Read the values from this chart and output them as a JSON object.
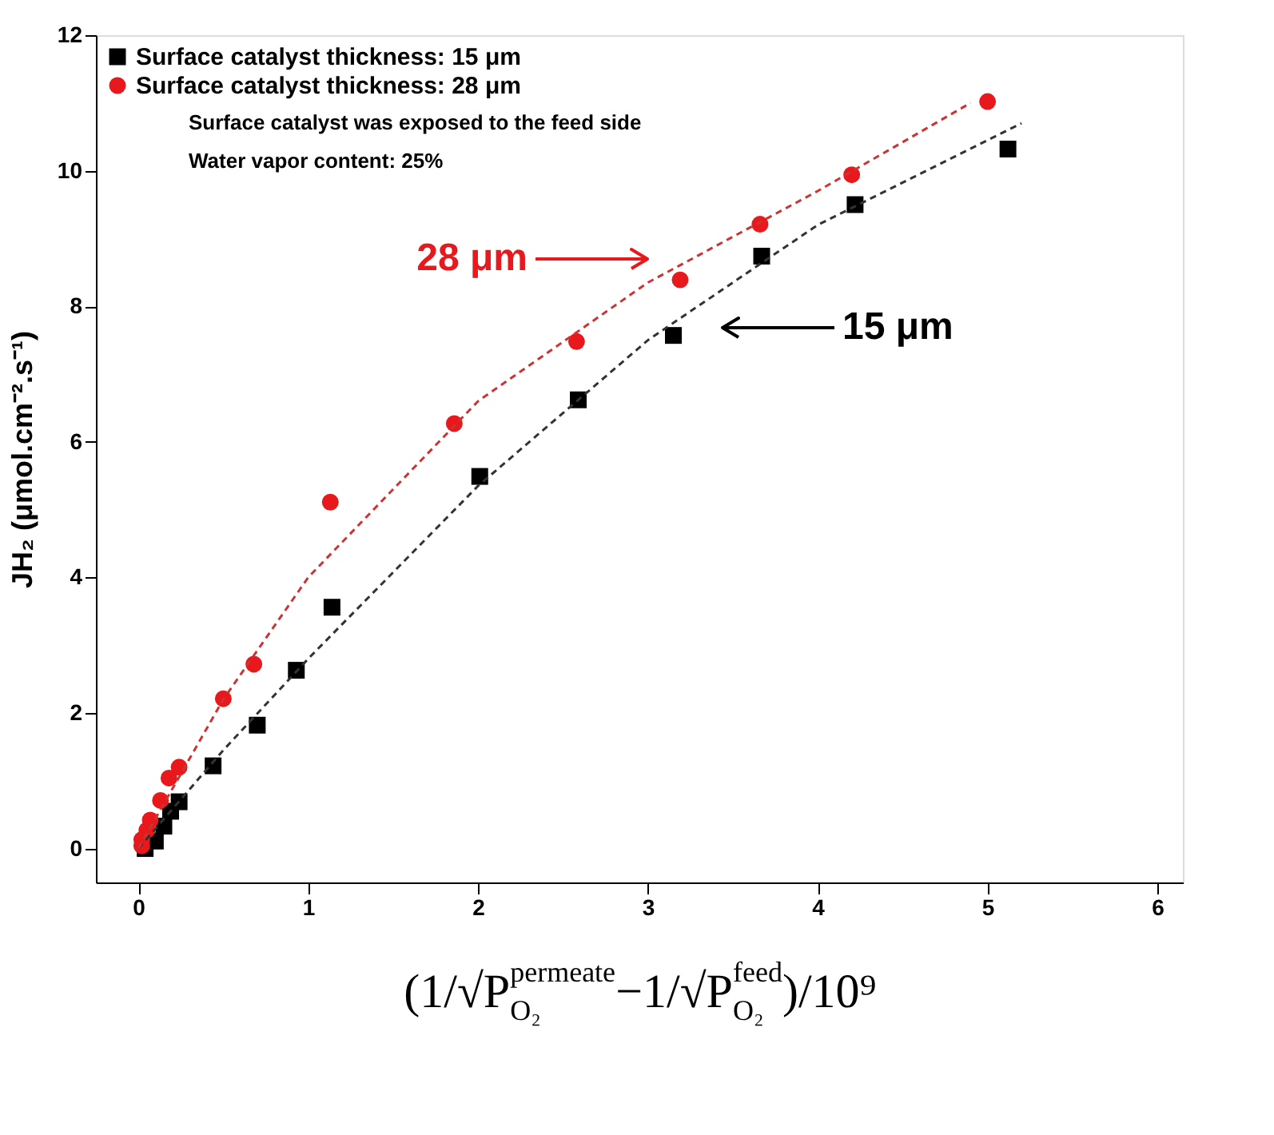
{
  "chart_data": {
    "type": "scatter",
    "xlabel": "(1/√P$^{permeate}$$_{O₂}$−1/√P$^{feed}$$_{O₂}$)/10⁹",
    "ylabel": "JH₂ (μmol.cm⁻².s⁻¹)",
    "xlim": [
      -0.25,
      6.15
    ],
    "xticks": [
      0,
      1,
      2,
      3,
      4,
      5,
      6
    ],
    "ylim": [
      -0.5,
      12
    ],
    "yticks": [
      0,
      2,
      4,
      6,
      8,
      10,
      12
    ],
    "grid": false,
    "legend": "top left",
    "series": [
      {
        "name": "Surface catalyst thickness: 15 μm",
        "color": "#000000",
        "marker": "square",
        "x": [
          0.04,
          0.1,
          0.15,
          0.19,
          0.24,
          0.44,
          0.7,
          0.93,
          1.14,
          2.01,
          2.59,
          3.15,
          3.67,
          4.22,
          5.12
        ],
        "values": [
          0.0,
          0.11,
          0.33,
          0.55,
          0.69,
          1.22,
          1.82,
          2.63,
          3.56,
          5.49,
          6.62,
          7.57,
          8.74,
          9.5,
          10.32
        ]
      },
      {
        "name": "Surface catalyst thickness: 28 μm",
        "color": "#e8191c",
        "marker": "circle",
        "x": [
          0.02,
          0.02,
          0.05,
          0.07,
          0.13,
          0.18,
          0.24,
          0.5,
          0.68,
          1.13,
          1.86,
          2.58,
          3.19,
          3.66,
          4.2,
          5.0
        ],
        "values": [
          0.04,
          0.13,
          0.27,
          0.42,
          0.71,
          1.04,
          1.2,
          2.21,
          2.72,
          5.11,
          6.27,
          7.48,
          8.39,
          9.21,
          9.94,
          11.02
        ]
      },
      {
        "type": "line",
        "color": "#333333",
        "line_style": "dashed",
        "marker": "none",
        "x": [
          0,
          0.5,
          1,
          2,
          3,
          4,
          5.2
        ],
        "values": [
          0,
          1.45,
          2.8,
          5.35,
          7.5,
          9.2,
          10.7
        ]
      },
      {
        "type": "line",
        "color": "#cc3333",
        "line_style": "dashed",
        "marker": "none",
        "x": [
          0,
          0.5,
          1,
          2,
          3,
          4,
          4.9
        ],
        "values": [
          0,
          2.2,
          4.0,
          6.6,
          8.35,
          9.7,
          11.0
        ]
      }
    ],
    "annotations": [
      "15 μm",
      "28 μm",
      "Surface catalyst was exposed to the feed side",
      "Water vapor content: 25%"
    ]
  }
}
